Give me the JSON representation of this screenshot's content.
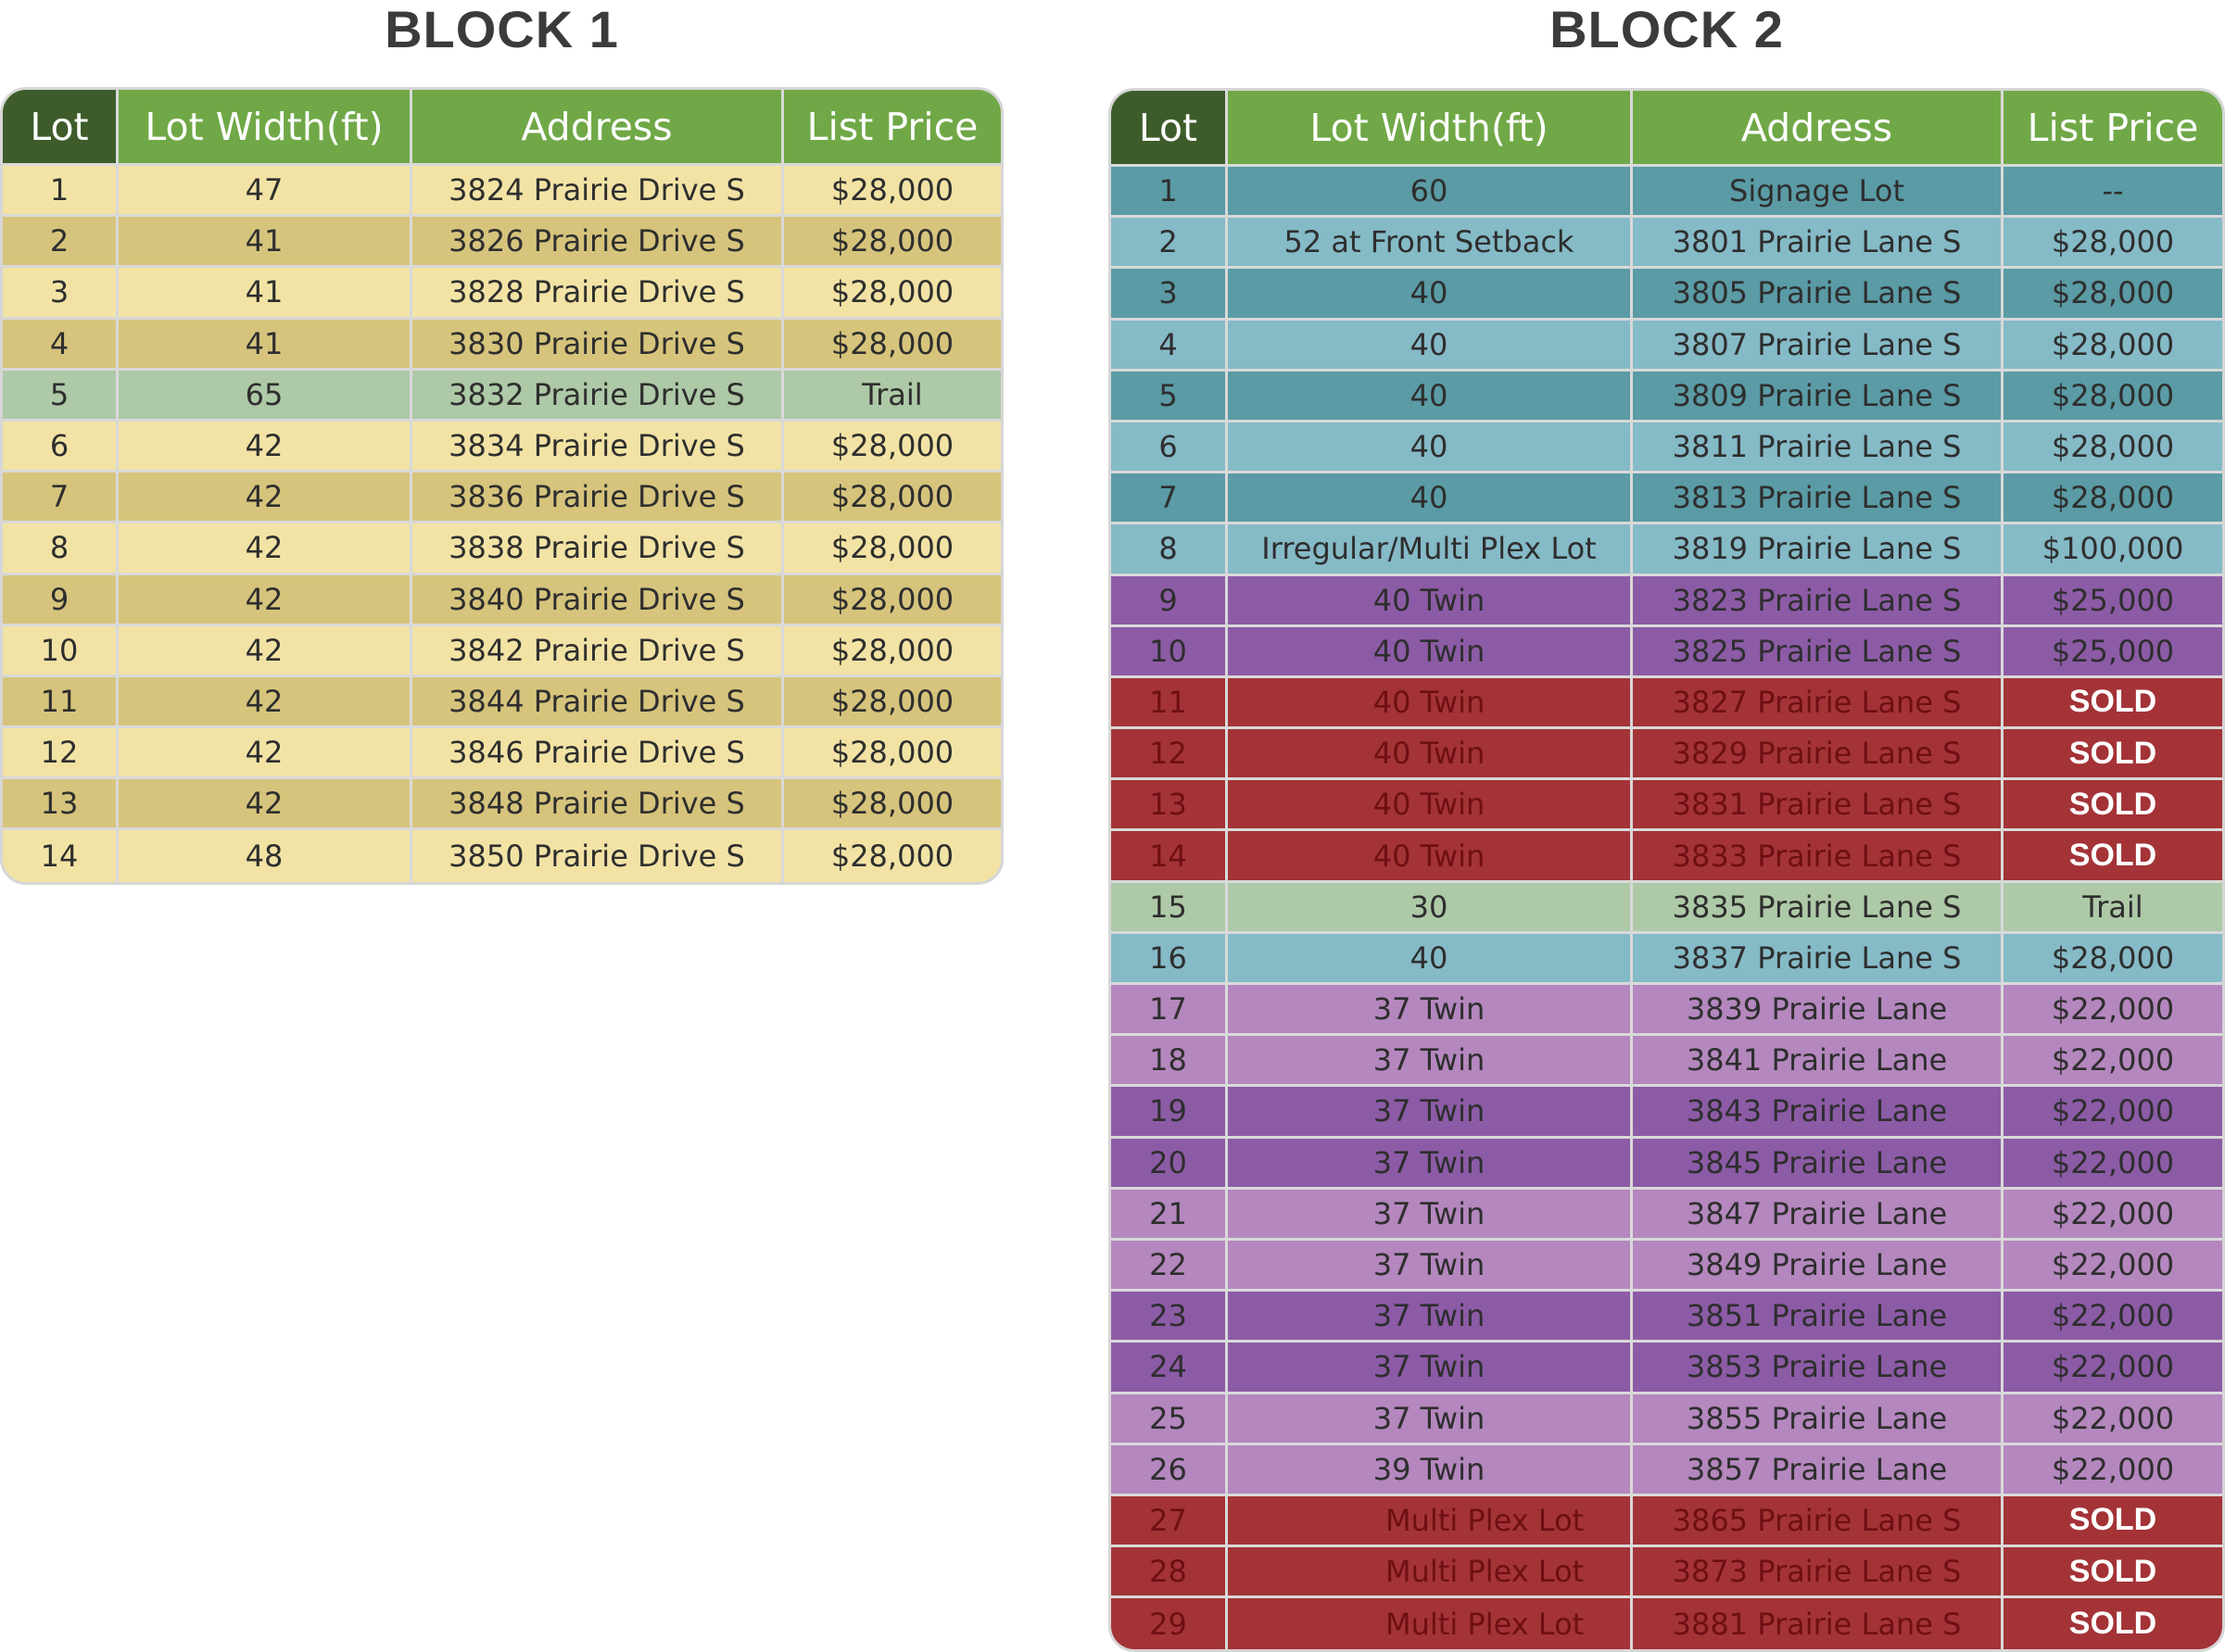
{
  "block1": {
    "title": "BLOCK 1",
    "headers": [
      "Lot",
      "Lot Width(ft)",
      "Address",
      "List Price"
    ],
    "rows": [
      [
        "1",
        "47",
        "3824 Prairie Drive S",
        "$28,000"
      ],
      [
        "2",
        "41",
        "3826 Prairie Drive S",
        "$28,000"
      ],
      [
        "3",
        "41",
        "3828 Prairie Drive S",
        "$28,000"
      ],
      [
        "4",
        "41",
        "3830 Prairie Drive S",
        "$28,000"
      ],
      [
        "5",
        "65",
        "3832 Prairie Drive S",
        "Trail"
      ],
      [
        "6",
        "42",
        "3834 Prairie Drive S",
        "$28,000"
      ],
      [
        "7",
        "42",
        "3836 Prairie Drive S",
        "$28,000"
      ],
      [
        "8",
        "42",
        "3838 Prairie Drive S",
        "$28,000"
      ],
      [
        "9",
        "42",
        "3840 Prairie Drive S",
        "$28,000"
      ],
      [
        "10",
        "42",
        "3842 Prairie Drive S",
        "$28,000"
      ],
      [
        "11",
        "42",
        "3844 Prairie Drive S",
        "$28,000"
      ],
      [
        "12",
        "42",
        "3846 Prairie Drive S",
        "$28,000"
      ],
      [
        "13",
        "42",
        "3848 Prairie Drive S",
        "$28,000"
      ],
      [
        "14",
        "48",
        "3850 Prairie Drive S",
        "$28,000"
      ]
    ]
  },
  "block2": {
    "title": "BLOCK 2",
    "headers": [
      "Lot",
      "Lot Width(ft)",
      "Address",
      "List Price"
    ],
    "rows": [
      [
        "1",
        "60",
        "Signage Lot",
        "--"
      ],
      [
        "2",
        "52 at Front Setback",
        "3801 Prairie Lane S",
        "$28,000"
      ],
      [
        "3",
        "40",
        "3805 Prairie Lane S",
        "$28,000"
      ],
      [
        "4",
        "40",
        "3807 Prairie Lane S",
        "$28,000"
      ],
      [
        "5",
        "40",
        "3809 Prairie Lane S",
        "$28,000"
      ],
      [
        "6",
        "40",
        "3811 Prairie Lane S",
        "$28,000"
      ],
      [
        "7",
        "40",
        "3813 Prairie Lane S",
        "$28,000"
      ],
      [
        "8",
        "Irregular/Multi Plex Lot",
        "3819 Prairie Lane S",
        "$100,000"
      ],
      [
        "9",
        "40 Twin",
        "3823 Prairie Lane S",
        "$25,000"
      ],
      [
        "10",
        "40 Twin",
        "3825 Prairie Lane S",
        "$25,000"
      ],
      [
        "11",
        "40 Twin",
        "3827 Prairie Lane S",
        "SOLD"
      ],
      [
        "12",
        "40 Twin",
        "3829 Prairie Lane S",
        "SOLD"
      ],
      [
        "13",
        "40 Twin",
        "3831 Prairie Lane S",
        "SOLD"
      ],
      [
        "14",
        "40 Twin",
        "3833 Prairie Lane S",
        "SOLD"
      ],
      [
        "15",
        "30",
        "3835 Prairie Lane S",
        "Trail"
      ],
      [
        "16",
        "40",
        "3837 Prairie Lane S",
        "$28,000"
      ],
      [
        "17",
        "37 Twin",
        "3839 Prairie Lane",
        "$22,000"
      ],
      [
        "18",
        "37 Twin",
        "3841  Prairie Lane",
        "$22,000"
      ],
      [
        "19",
        "37 Twin",
        "3843 Prairie Lane",
        "$22,000"
      ],
      [
        "20",
        "37 Twin",
        "3845 Prairie Lane",
        "$22,000"
      ],
      [
        "21",
        "37 Twin",
        "3847 Prairie Lane",
        "$22,000"
      ],
      [
        "22",
        "37 Twin",
        "3849 Prairie Lane",
        "$22,000"
      ],
      [
        "23",
        "37 Twin",
        "3851 Prairie Lane",
        "$22,000"
      ],
      [
        "24",
        "37 Twin",
        "3853 Prairie Lane",
        "$22,000"
      ],
      [
        "25",
        "37 Twin",
        "3855 Prairie Lane",
        "$22,000"
      ],
      [
        "26",
        "39 Twin",
        "3857 Prairie Lane",
        "$22,000"
      ],
      [
        "27",
        "Multi Plex Lot",
        "3865 Prairie Lane S",
        "SOLD"
      ],
      [
        "28",
        "Multi Plex Lot",
        "3873 Prairie Lane S",
        "SOLD"
      ],
      [
        "29",
        "Multi Plex Lot",
        "3881 Prairie Lane S",
        "SOLD"
      ]
    ]
  },
  "colors": {
    "header_green": "#70a847",
    "header_lot_dark_green": "#3d5c2a",
    "block1_light": "#f2e3a5",
    "block1_dark": "#d6c47c",
    "trail_green": "#aec9a7",
    "teal": "#5a9ba5",
    "light_blue": "#85bac7",
    "purple": "#8c5ba6",
    "light_purple": "#b487be",
    "sold_red": "#a33337"
  }
}
